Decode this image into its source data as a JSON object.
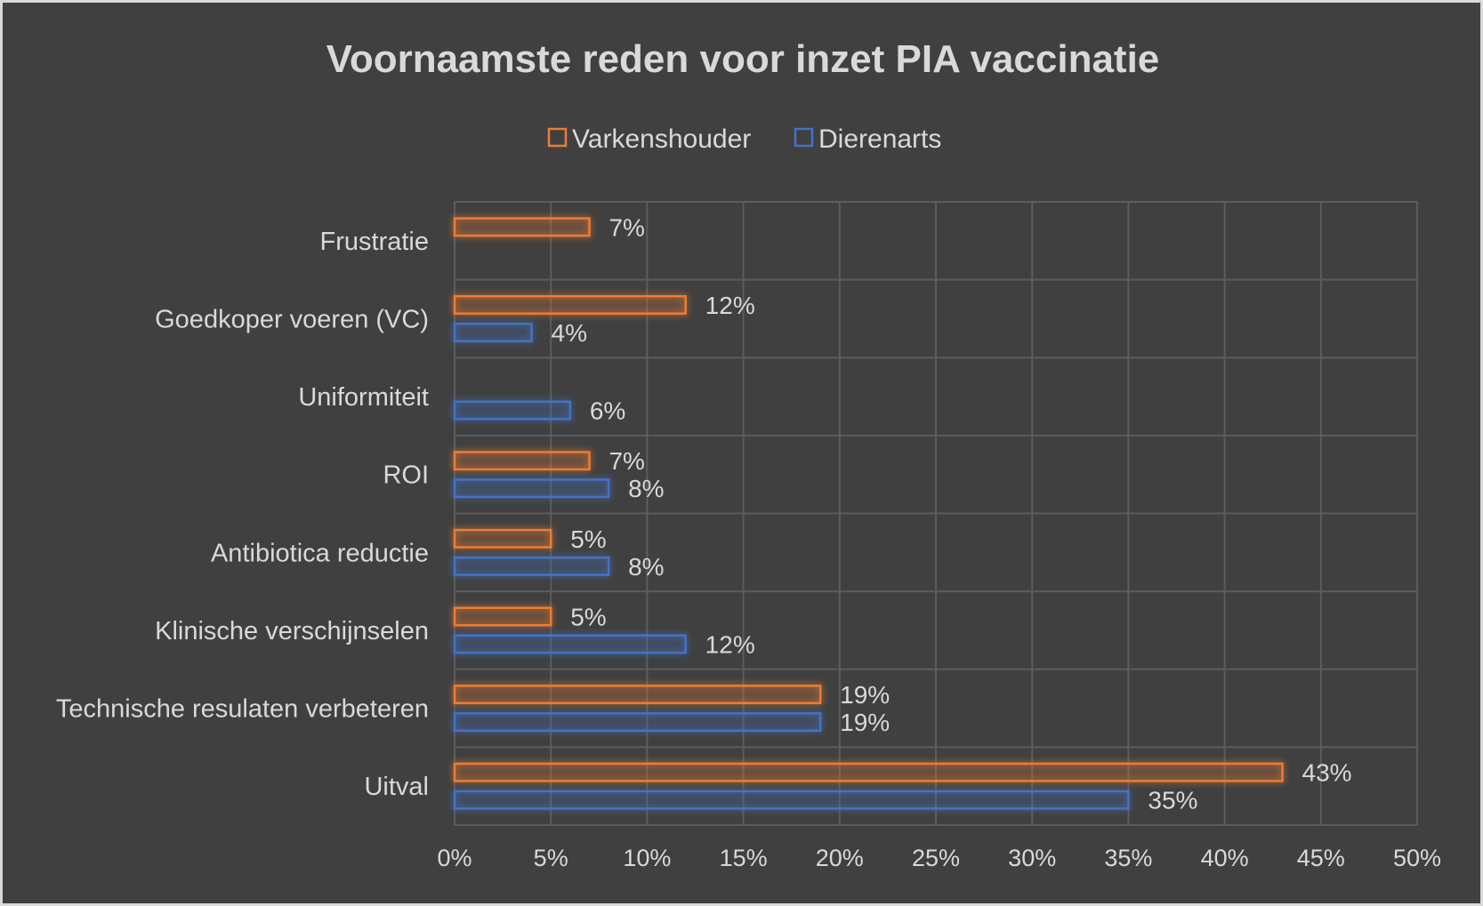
{
  "chart_data": {
    "type": "bar",
    "orientation": "horizontal",
    "title": "Voornaamste reden voor inzet PIA vaccinatie",
    "categories": [
      "Frustratie",
      "Goedkoper voeren (VC)",
      "Uniformiteit",
      "ROI",
      "Antibiotica reductie",
      "Klinische verschijnselen",
      "Technische resulaten verbeteren",
      "Uitval"
    ],
    "series": [
      {
        "name": "Varkenshouder",
        "color": "#ed7d31",
        "values": [
          7,
          12,
          null,
          7,
          5,
          5,
          19,
          43
        ],
        "labels": [
          "7%",
          "12%",
          "",
          "7%",
          "5%",
          "5%",
          "19%",
          "43%"
        ]
      },
      {
        "name": "Dierenarts",
        "color": "#4472c4",
        "values": [
          null,
          4,
          6,
          8,
          8,
          12,
          19,
          35
        ],
        "labels": [
          "",
          "4%",
          "6%",
          "8%",
          "8%",
          "12%",
          "19%",
          "35%"
        ]
      }
    ],
    "xlim": [
      0,
      50
    ],
    "xticks": [
      0,
      5,
      10,
      15,
      20,
      25,
      30,
      35,
      40,
      45,
      50
    ],
    "xtick_labels": [
      "0%",
      "5%",
      "10%",
      "15%",
      "20%",
      "25%",
      "30%",
      "35%",
      "40%",
      "45%",
      "50%"
    ],
    "xlabel": "",
    "ylabel": "",
    "grid": true,
    "legend_position": "top"
  }
}
